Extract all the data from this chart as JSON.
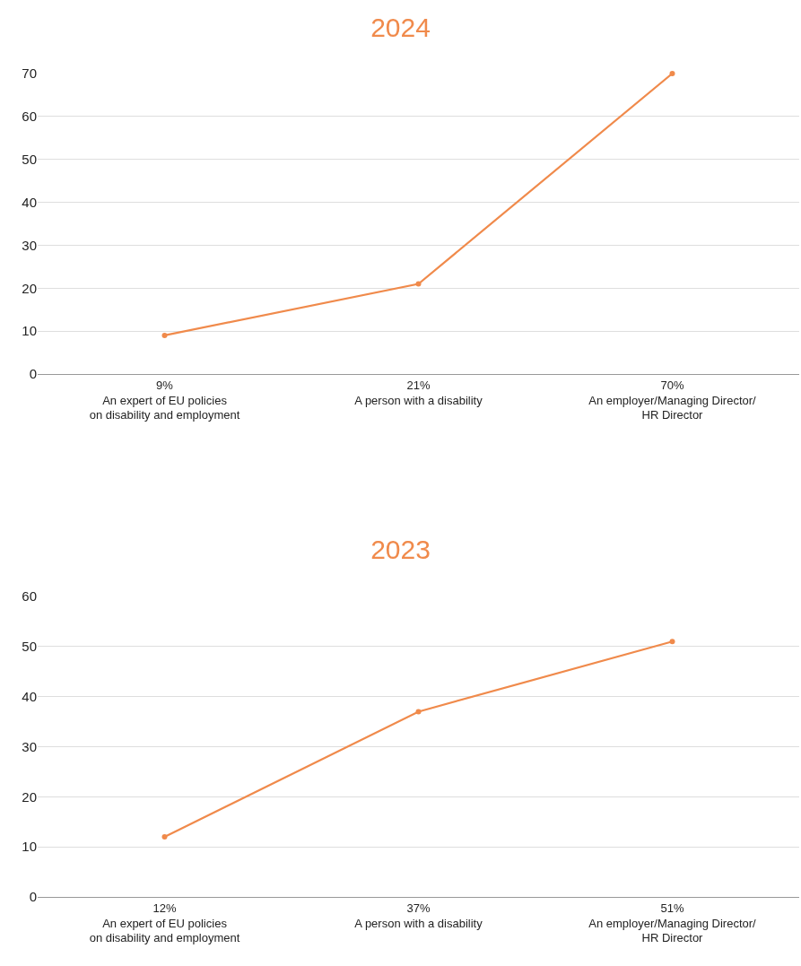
{
  "chart_data": [
    {
      "type": "line",
      "title": "2024",
      "categories": [
        "9%\nAn expert of EU policies\non disability and employment",
        "21%\nA person with a disability",
        "70%\nAn employer/Managing Director/\nHR Director"
      ],
      "series": [
        {
          "color": "#f08a4b",
          "values": [
            9,
            21,
            70
          ]
        }
      ],
      "ylim": [
        0,
        70
      ],
      "yticks": [
        0,
        10,
        20,
        30,
        40,
        50,
        60,
        70
      ],
      "grid": "y",
      "marker": "circle",
      "line_style": "solid"
    },
    {
      "type": "line",
      "title": "2023",
      "categories": [
        "12%\nAn expert of EU policies\non disability and employment",
        "37%\nA person with a disability",
        "51%\nAn employer/Managing Director/\nHR Director"
      ],
      "series": [
        {
          "color": "#f08a4b",
          "values": [
            12,
            37,
            51
          ]
        }
      ],
      "ylim": [
        0,
        60
      ],
      "yticks": [
        0,
        10,
        20,
        30,
        40,
        50,
        60
      ],
      "grid": "y",
      "marker": "circle",
      "line_style": "solid"
    }
  ]
}
